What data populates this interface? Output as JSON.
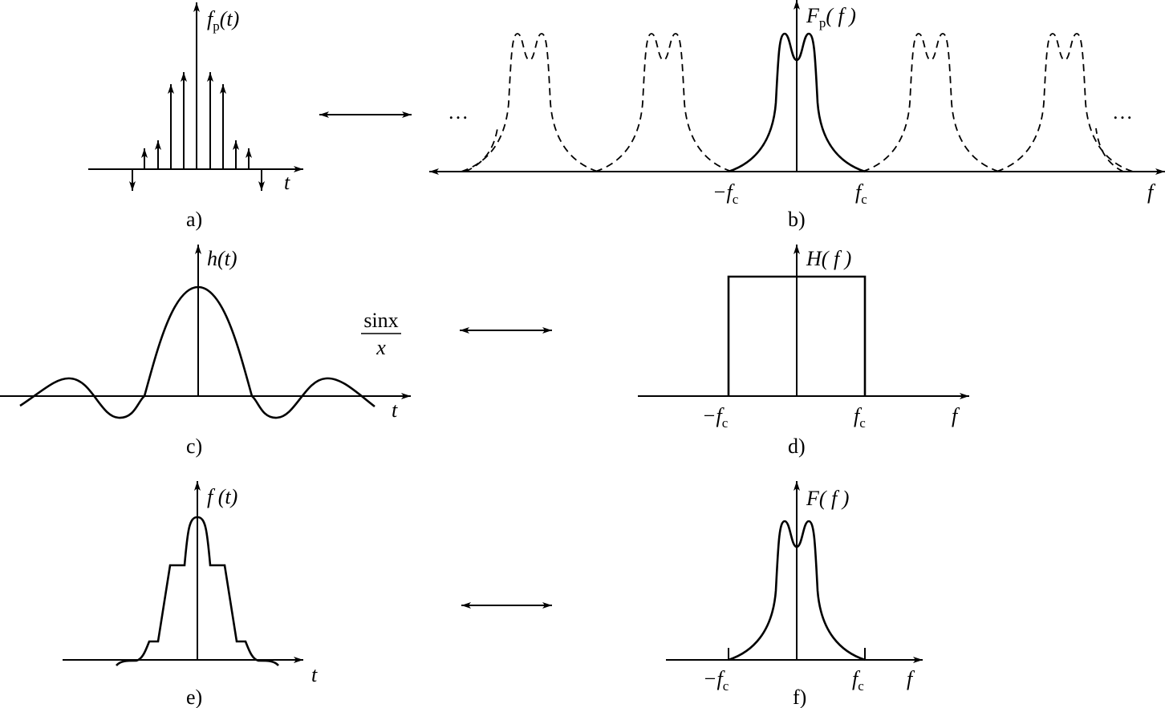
{
  "panels": [
    {
      "caption": "a)",
      "ylabel": {
        "base": "f",
        "sub": "p",
        "tail": "(t)"
      },
      "xlabel": "t"
    },
    {
      "caption": "b)",
      "ylabel": {
        "base": "F",
        "sub": "p",
        "tail": "( f )"
      },
      "xlabel": "f",
      "ticks": [
        {
          "base": "−f",
          "sub": "c"
        },
        {
          "base": "f",
          "sub": "c"
        }
      ],
      "ellipsis": [
        "…",
        "…"
      ]
    },
    {
      "caption": "c)",
      "ylabel": {
        "base": "h",
        "tail": "(t)"
      },
      "xlabel": "t",
      "formula": {
        "numerator": "sinx",
        "denominator": "x"
      }
    },
    {
      "caption": "d)",
      "ylabel": {
        "base": "H",
        "tail": "( f )"
      },
      "xlabel": "f",
      "ticks": [
        {
          "base": "−f",
          "sub": "c"
        },
        {
          "base": "f",
          "sub": "c"
        }
      ]
    },
    {
      "caption": "e)",
      "ylabel": {
        "base": "f",
        "tail": " (t)"
      },
      "xlabel": "t"
    },
    {
      "caption": "f)",
      "ylabel": {
        "base": "F",
        "tail": "( f )"
      },
      "xlabel": "f",
      "ticks": [
        {
          "base": "−f",
          "sub": "c"
        },
        {
          "base": "f",
          "sub": "c"
        }
      ]
    }
  ]
}
